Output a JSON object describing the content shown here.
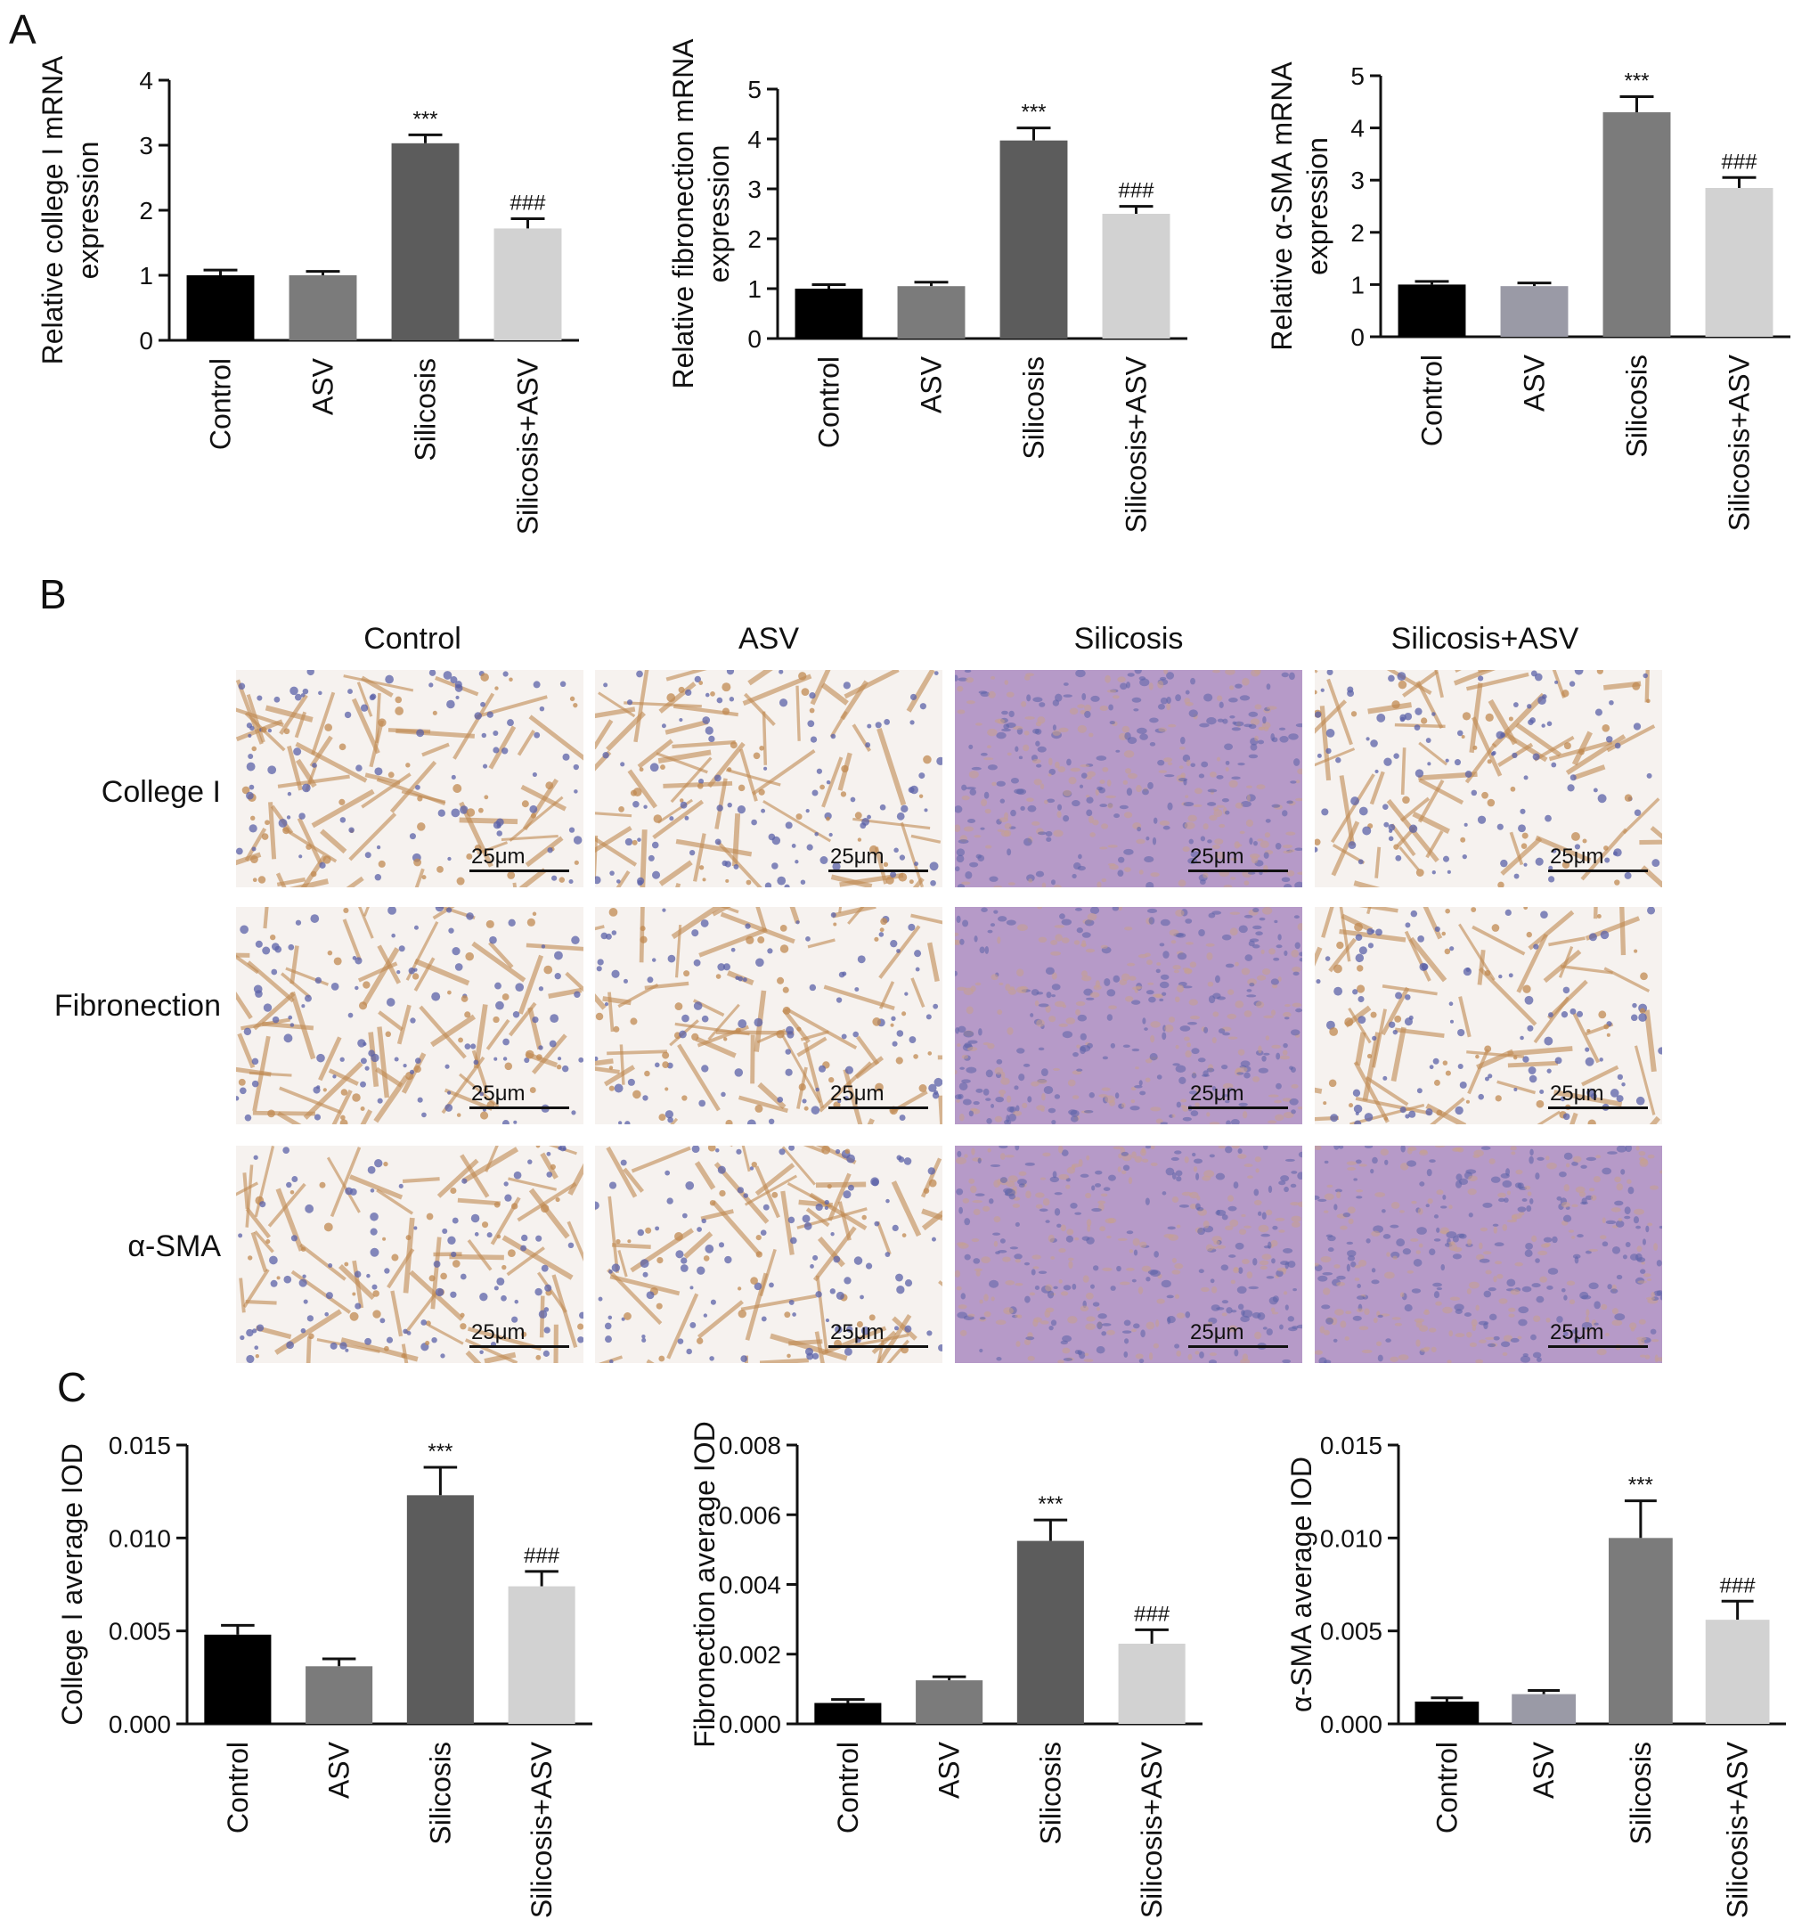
{
  "panel_labels": {
    "a": "A",
    "b": "B",
    "c": "C"
  },
  "histology": {
    "columns": [
      "Control",
      "ASV",
      "Silicosis",
      "Silicosis+ASV"
    ],
    "rows": [
      "College I",
      "Fibronection",
      "α-SMA"
    ],
    "scale_bar": "25μm",
    "colors": {
      "background_light": "#f6f2ef",
      "stain_brown": "#c08a52",
      "nuclei_blue": "#5b62a8",
      "tissue_purple": "#b69ac8"
    }
  },
  "chart_data": [
    {
      "type": "bar",
      "panel": "A",
      "categories": [
        "Control",
        "ASV",
        "Silicosis",
        "Silicosis+ASV"
      ],
      "values": [
        1.0,
        1.0,
        3.03,
        1.72
      ],
      "errors": [
        0.08,
        0.06,
        0.13,
        0.15
      ],
      "annotations": [
        "",
        "",
        "***",
        "###"
      ],
      "ylabel_lines": [
        "Relative college I mRNA",
        "expression"
      ],
      "ylim": [
        0,
        4
      ],
      "yticks": [
        "0",
        "1",
        "2",
        "3",
        "4"
      ],
      "bar_colors": [
        "#000000",
        "#7b7b7b",
        "#5c5c5c",
        "#d2d2d2"
      ]
    },
    {
      "type": "bar",
      "panel": "A",
      "categories": [
        "Control",
        "ASV",
        "Silicosis",
        "Silicosis+ASV"
      ],
      "values": [
        1.0,
        1.05,
        3.97,
        2.5
      ],
      "errors": [
        0.08,
        0.08,
        0.25,
        0.15
      ],
      "annotations": [
        "",
        "",
        "***",
        "###"
      ],
      "ylabel_lines": [
        "Relative fibronection mRNA",
        "expression"
      ],
      "ylim": [
        0,
        5
      ],
      "yticks": [
        "0",
        "1",
        "2",
        "3",
        "4",
        "5"
      ],
      "bar_colors": [
        "#000000",
        "#7b7b7b",
        "#5c5c5c",
        "#d2d2d2"
      ]
    },
    {
      "type": "bar",
      "panel": "A",
      "categories": [
        "Control",
        "ASV",
        "Silicosis",
        "Silicosis+ASV"
      ],
      "values": [
        1.0,
        0.97,
        4.3,
        2.85
      ],
      "errors": [
        0.06,
        0.06,
        0.3,
        0.2
      ],
      "annotations": [
        "",
        "",
        "***",
        "###"
      ],
      "ylabel_lines": [
        "Relative α-SMA mRNA",
        "expression"
      ],
      "ylim": [
        0,
        5
      ],
      "yticks": [
        "0",
        "1",
        "2",
        "3",
        "4",
        "5"
      ],
      "bar_colors": [
        "#000000",
        "#9a9aa6",
        "#7b7b7b",
        "#d2d2d2"
      ]
    },
    {
      "type": "bar",
      "panel": "C",
      "categories": [
        "Control",
        "ASV",
        "Silicosis",
        "Silicosis+ASV"
      ],
      "values": [
        0.0048,
        0.0031,
        0.0123,
        0.0074
      ],
      "errors": [
        0.0005,
        0.0004,
        0.0015,
        0.0008
      ],
      "annotations": [
        "",
        "",
        "***",
        "###"
      ],
      "ylabel_lines": [
        "College I average IOD"
      ],
      "ylim": [
        0,
        0.015
      ],
      "yticks": [
        "0.000",
        "0.005",
        "0.010",
        "0.015"
      ],
      "bar_colors": [
        "#000000",
        "#7b7b7b",
        "#5c5c5c",
        "#d2d2d2"
      ]
    },
    {
      "type": "bar",
      "panel": "C",
      "categories": [
        "Control",
        "ASV",
        "Silicosis",
        "Silicosis+ASV"
      ],
      "values": [
        0.0006,
        0.00125,
        0.00525,
        0.0023
      ],
      "errors": [
        0.0001,
        0.0001,
        0.0006,
        0.0004
      ],
      "annotations": [
        "",
        "",
        "***",
        "###"
      ],
      "ylabel_lines": [
        "Fibronection average IOD"
      ],
      "ylim": [
        0,
        0.008
      ],
      "yticks": [
        "0.000",
        "0.002",
        "0.004",
        "0.006",
        "0.008"
      ],
      "bar_colors": [
        "#000000",
        "#7b7b7b",
        "#5c5c5c",
        "#d2d2d2"
      ]
    },
    {
      "type": "bar",
      "panel": "C",
      "categories": [
        "Control",
        "ASV",
        "Silicosis",
        "Silicosis+ASV"
      ],
      "values": [
        0.0012,
        0.0016,
        0.01,
        0.0056
      ],
      "errors": [
        0.0002,
        0.0002,
        0.002,
        0.001
      ],
      "annotations": [
        "",
        "",
        "***",
        "###"
      ],
      "ylabel_lines": [
        "α-SMA average IOD"
      ],
      "ylim": [
        0,
        0.015
      ],
      "yticks": [
        "0.000",
        "0.005",
        "0.010",
        "0.015"
      ],
      "bar_colors": [
        "#000000",
        "#9a9aa6",
        "#7b7b7b",
        "#d2d2d2"
      ]
    }
  ]
}
